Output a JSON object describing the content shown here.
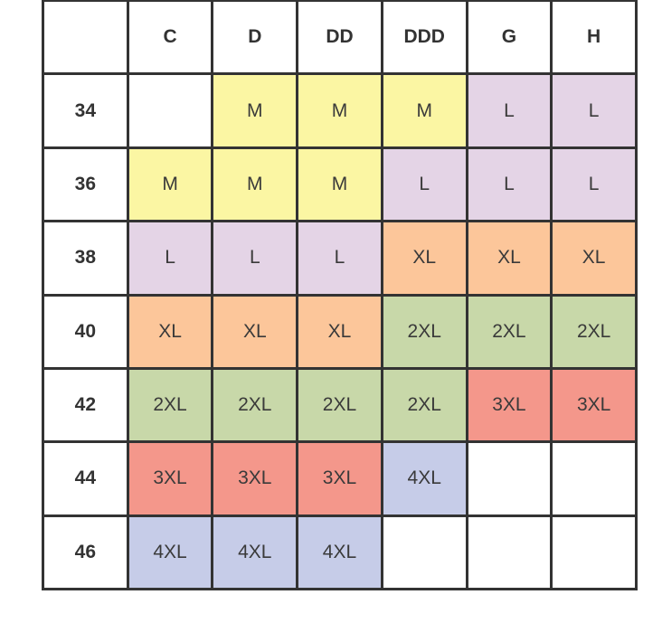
{
  "corner": "",
  "columns": [
    "C",
    "D",
    "DD",
    "DDD",
    "G",
    "H"
  ],
  "rows": [
    {
      "band": "34",
      "sizes": [
        "",
        "M",
        "M",
        "M",
        "L",
        "L"
      ]
    },
    {
      "band": "36",
      "sizes": [
        "M",
        "M",
        "M",
        "L",
        "L",
        "L"
      ]
    },
    {
      "band": "38",
      "sizes": [
        "L",
        "L",
        "L",
        "XL",
        "XL",
        "XL"
      ]
    },
    {
      "band": "40",
      "sizes": [
        "XL",
        "XL",
        "XL",
        "2XL",
        "2XL",
        "2XL"
      ]
    },
    {
      "band": "42",
      "sizes": [
        "2XL",
        "2XL",
        "2XL",
        "2XL",
        "3XL",
        "3XL"
      ]
    },
    {
      "band": "44",
      "sizes": [
        "3XL",
        "3XL",
        "3XL",
        "4XL",
        "",
        ""
      ]
    },
    {
      "band": "46",
      "sizes": [
        "4XL",
        "4XL",
        "4XL",
        "",
        "",
        ""
      ]
    }
  ],
  "size_colors": {
    "M": "#fbf6a3",
    "L": "#e4d4e6",
    "XL": "#fcc69a",
    "2XL": "#c8d8a9",
    "3XL": "#f4978b",
    "4XL": "#c6cce8"
  }
}
